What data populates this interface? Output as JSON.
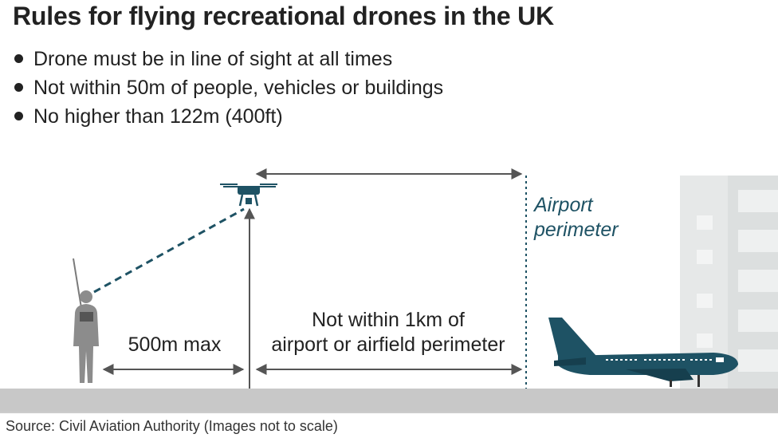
{
  "title": "Rules for flying recreational drones in the UK",
  "rules": [
    "Drone must be in line of sight at all times",
    "Not within 50m of people, vehicles or buildings",
    "No higher than 122m (400ft)"
  ],
  "diagram": {
    "airport_label_line1": "Airport",
    "airport_label_line2": "perimeter",
    "distance_label": "500m max",
    "airport_distance_line1": "Not within 1km of",
    "airport_distance_line2": "airport or airfield perimeter"
  },
  "source": "Source: Civil Aviation Authority (Images not to scale)",
  "colors": {
    "accent": "#1e5264",
    "ground": "#c8c8c8",
    "arrow": "#555555",
    "person": "#8c8c8c",
    "building": "#dcdfdf"
  }
}
